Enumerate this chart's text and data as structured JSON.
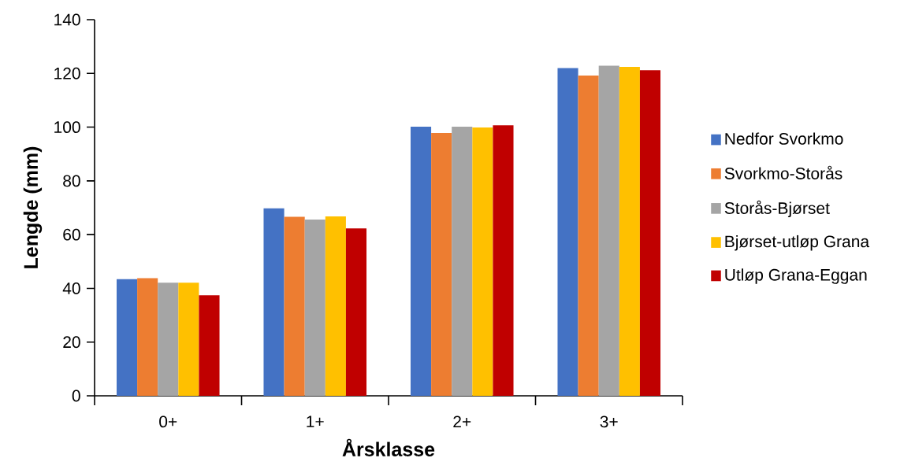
{
  "chart_data": {
    "type": "bar",
    "xlabel": "Årsklasse",
    "ylabel": "Lengde (mm)",
    "categories": [
      "0+",
      "1+",
      "2+",
      "3+"
    ],
    "series": [
      {
        "name": "Nedfor Svorkmo",
        "color": "#4472c4",
        "values": [
          43.4,
          69.8,
          100.2,
          122.0
        ]
      },
      {
        "name": "Svorkmo-Storås",
        "color": "#ed7d31",
        "values": [
          43.8,
          66.6,
          97.8,
          119.2
        ]
      },
      {
        "name": "Storås-Bjørset",
        "color": "#a5a5a5",
        "values": [
          42.1,
          65.6,
          100.2,
          122.9
        ]
      },
      {
        "name": "Bjørset-utløp Grana",
        "color": "#ffc000",
        "values": [
          42.1,
          66.8,
          99.9,
          122.4
        ]
      },
      {
        "name": "Utløp Grana-Eggan",
        "color": "#c00000",
        "values": [
          37.4,
          62.3,
          100.7,
          121.2
        ]
      }
    ],
    "ylim": [
      0,
      140
    ],
    "yticks": [
      0,
      20,
      40,
      60,
      80,
      100,
      120,
      140
    ],
    "grid": false,
    "legend": "right"
  }
}
